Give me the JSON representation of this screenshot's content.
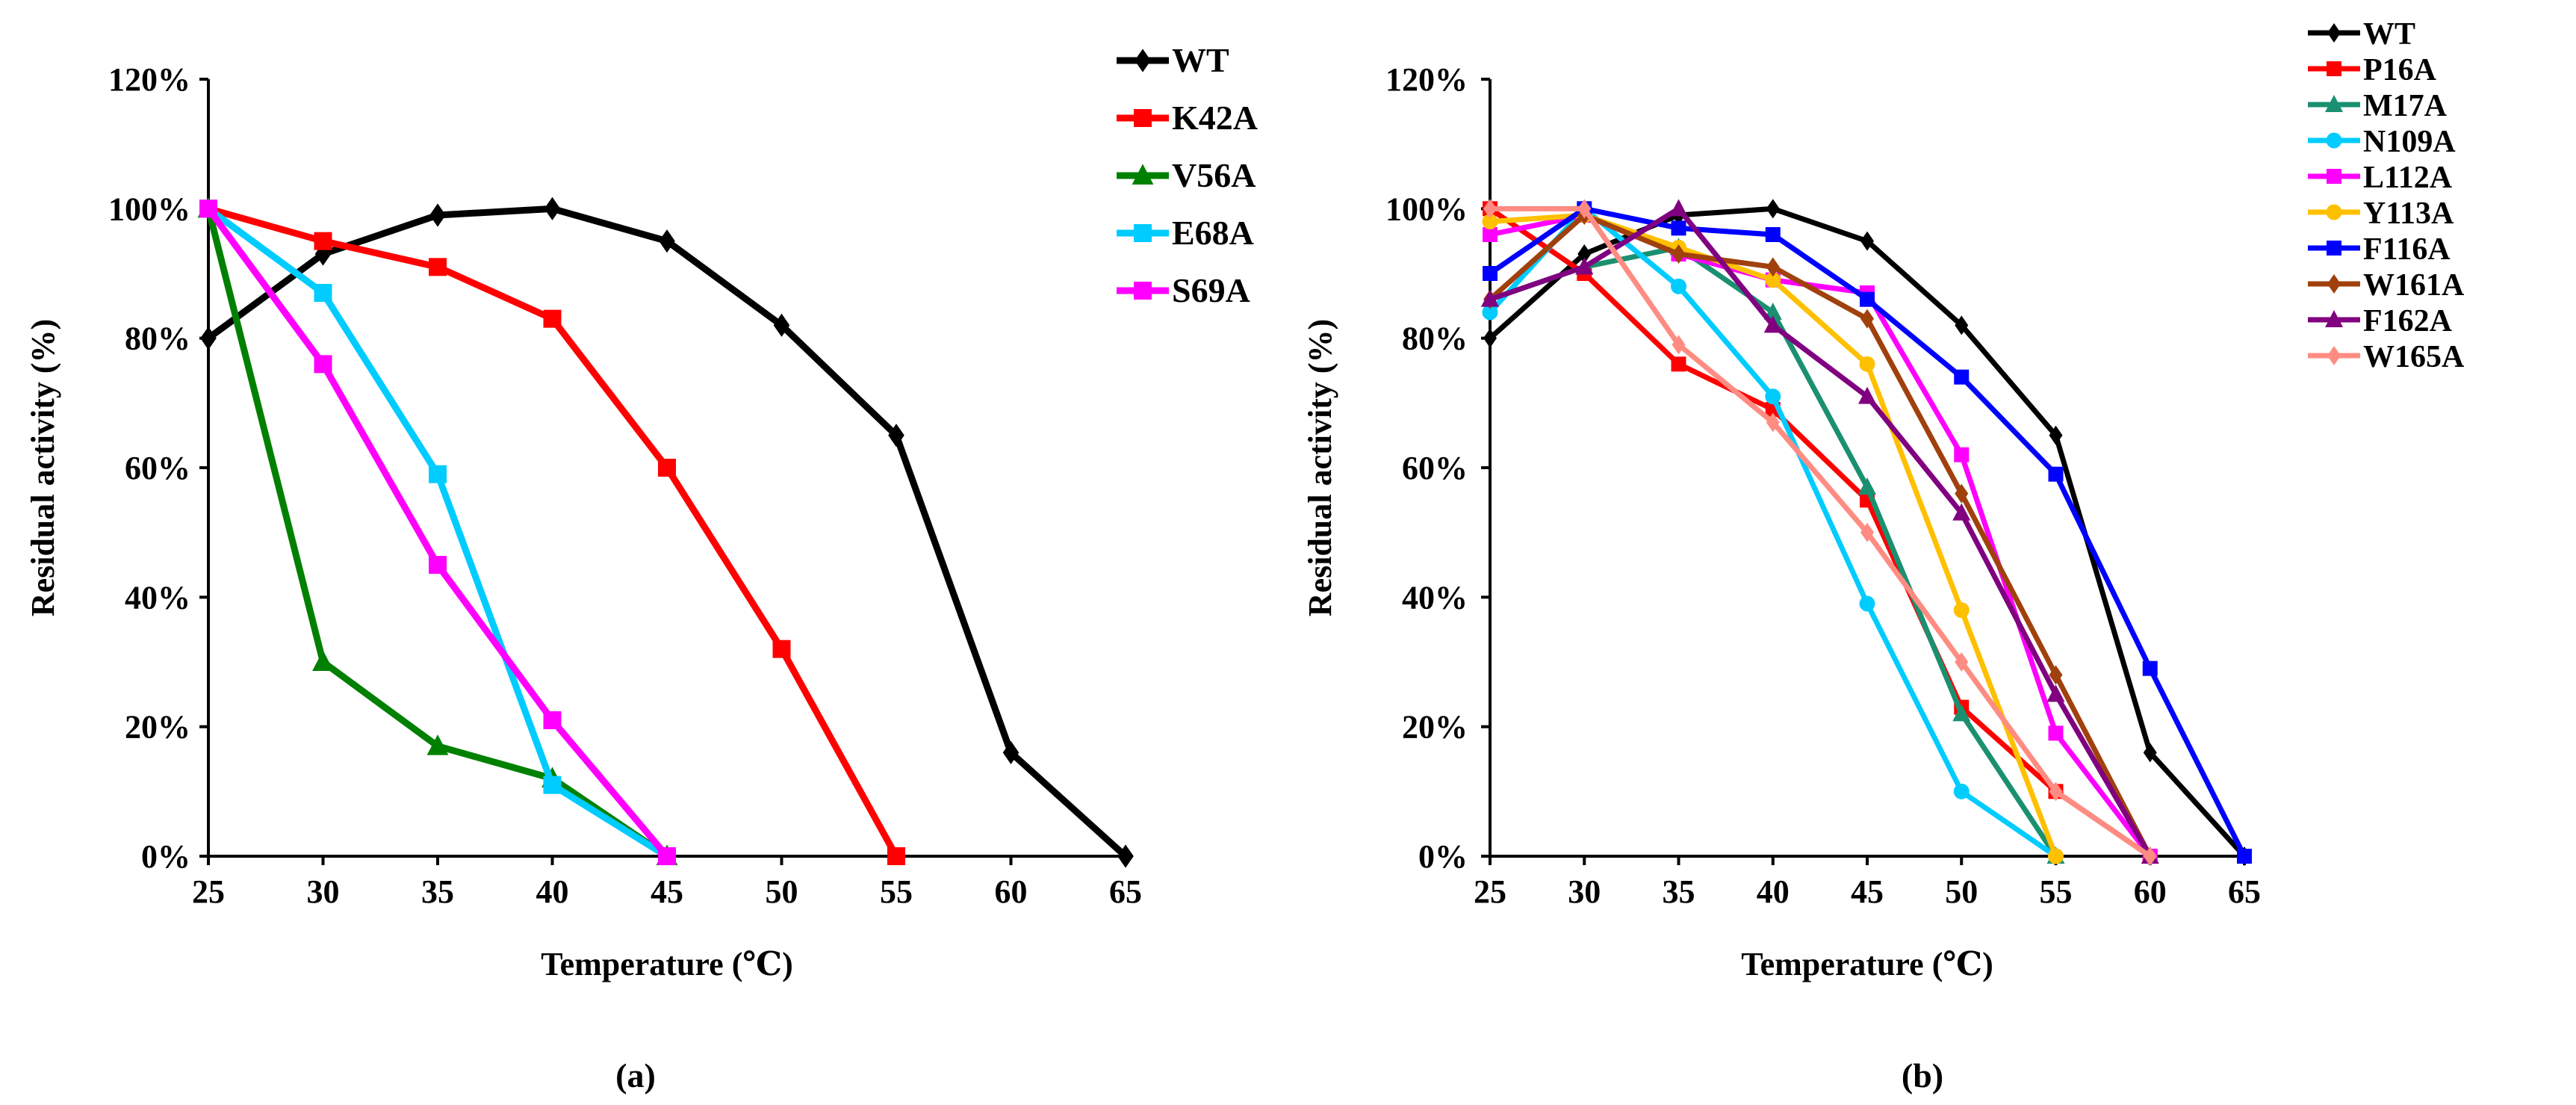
{
  "chart_data": [
    {
      "type": "line",
      "panel_label": "(a)",
      "xlabel": "Temperature (℃)",
      "ylabel": "Residual activity (%)",
      "x_ticks": [
        "25",
        "30",
        "35",
        "40",
        "45",
        "50",
        "55",
        "60",
        "65"
      ],
      "y_ticks": [
        "0%",
        "20%",
        "40%",
        "60%",
        "80%",
        "100%",
        "120%"
      ],
      "xlim": [
        25,
        65
      ],
      "ylim": [
        0,
        120
      ],
      "legend_position": "top-right",
      "series": [
        {
          "name": "WT",
          "color": "#000000",
          "marker": "diamond",
          "x": [
            25,
            30,
            35,
            40,
            45,
            50,
            55,
            60,
            65
          ],
          "y": [
            80,
            93,
            99,
            100,
            95,
            82,
            65,
            16,
            0
          ]
        },
        {
          "name": "K42A",
          "color": "#ff0000",
          "marker": "square",
          "x": [
            25,
            30,
            35,
            40,
            45,
            50,
            55
          ],
          "y": [
            100,
            95,
            91,
            83,
            60,
            32,
            0
          ]
        },
        {
          "name": "V56A",
          "color": "#008000",
          "marker": "triangle",
          "x": [
            25,
            30,
            35,
            40,
            45
          ],
          "y": [
            100,
            30,
            17,
            12,
            0
          ]
        },
        {
          "name": "E68A",
          "color": "#00ccff",
          "marker": "square",
          "x": [
            25,
            30,
            35,
            40,
            45
          ],
          "y": [
            100,
            87,
            59,
            11,
            0
          ]
        },
        {
          "name": "S69A",
          "color": "#ff00ff",
          "marker": "square",
          "x": [
            25,
            30,
            35,
            40,
            45
          ],
          "y": [
            100,
            76,
            45,
            21,
            0
          ]
        }
      ]
    },
    {
      "type": "line",
      "panel_label": "(b)",
      "xlabel": "Temperature (℃)",
      "ylabel": "Residual activity (%)",
      "x_ticks": [
        "25",
        "30",
        "35",
        "40",
        "45",
        "50",
        "55",
        "60",
        "65"
      ],
      "y_ticks": [
        "0%",
        "20%",
        "40%",
        "60%",
        "80%",
        "100%",
        "120%"
      ],
      "xlim": [
        25,
        65
      ],
      "ylim": [
        0,
        120
      ],
      "legend_position": "top-right",
      "series": [
        {
          "name": "WT",
          "color": "#000000",
          "marker": "diamond",
          "x": [
            25,
            30,
            35,
            40,
            45,
            50,
            55,
            60,
            65
          ],
          "y": [
            80,
            93,
            99,
            100,
            95,
            82,
            65,
            16,
            0
          ]
        },
        {
          "name": "P16A",
          "color": "#ff0000",
          "marker": "square",
          "x": [
            25,
            30,
            35,
            40,
            45,
            50,
            55,
            60
          ],
          "y": [
            100,
            90,
            76,
            69,
            55,
            23,
            10,
            0
          ]
        },
        {
          "name": "M17A",
          "color": "#1a9070",
          "marker": "triangle",
          "x": [
            25,
            30,
            35,
            40,
            45,
            50,
            55
          ],
          "y": [
            86,
            91,
            94,
            84,
            57,
            22,
            0
          ]
        },
        {
          "name": "N109A",
          "color": "#00ccff",
          "marker": "circle",
          "x": [
            25,
            30,
            35,
            40,
            45,
            50,
            55
          ],
          "y": [
            84,
            100,
            88,
            71,
            39,
            10,
            0
          ]
        },
        {
          "name": "L112A",
          "color": "#ff00ff",
          "marker": "square",
          "x": [
            25,
            30,
            35,
            40,
            45,
            50,
            55,
            60
          ],
          "y": [
            96,
            99,
            93,
            89,
            87,
            62,
            19,
            0
          ]
        },
        {
          "name": "Y113A",
          "color": "#ffc000",
          "marker": "circle",
          "x": [
            25,
            30,
            35,
            40,
            45,
            50,
            55
          ],
          "y": [
            98,
            99,
            94,
            89,
            76,
            38,
            0
          ]
        },
        {
          "name": "F116A",
          "color": "#0000ff",
          "marker": "square",
          "x": [
            25,
            30,
            35,
            40,
            45,
            50,
            55,
            60,
            65
          ],
          "y": [
            90,
            100,
            97,
            96,
            86,
            74,
            59,
            29,
            0
          ]
        },
        {
          "name": "W161A",
          "color": "#a0410d",
          "marker": "diamond",
          "x": [
            25,
            30,
            35,
            40,
            45,
            50,
            55,
            60
          ],
          "y": [
            86,
            99,
            93,
            91,
            83,
            56,
            28,
            0
          ]
        },
        {
          "name": "F162A",
          "color": "#800080",
          "marker": "triangle",
          "x": [
            25,
            30,
            35,
            40,
            45,
            50,
            55,
            60
          ],
          "y": [
            86,
            91,
            100,
            82,
            71,
            53,
            25,
            0
          ]
        },
        {
          "name": "W165A",
          "color": "#ff8c82",
          "marker": "diamond",
          "x": [
            25,
            30,
            35,
            40,
            45,
            50,
            55,
            60
          ],
          "y": [
            100,
            100,
            79,
            67,
            50,
            30,
            10,
            0
          ]
        }
      ]
    }
  ]
}
